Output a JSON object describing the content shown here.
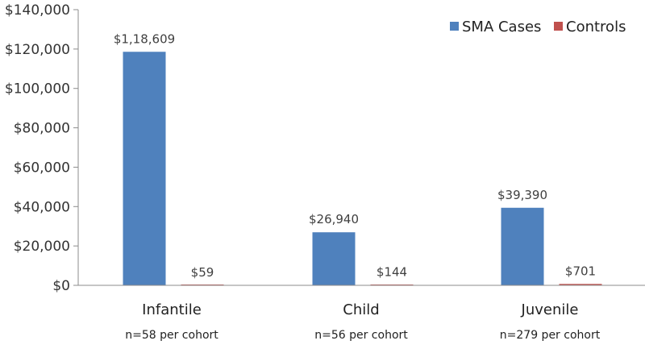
{
  "chart_data": {
    "type": "bar",
    "categories": [
      "Infantile",
      "Child",
      "Juvenile"
    ],
    "category_notes": [
      "n=58 per cohort",
      "n=56 per cohort",
      "n=279 per cohort"
    ],
    "series": [
      {
        "name": "SMA Cases",
        "color": "#4f81bd",
        "values": [
          118609,
          26940,
          39390
        ],
        "labels": [
          "$1,18,609",
          "$26,940",
          "$39,390"
        ]
      },
      {
        "name": "Controls",
        "color": "#c0504d",
        "values": [
          59,
          144,
          701
        ],
        "labels": [
          "$59",
          "$144",
          "$701"
        ]
      }
    ],
    "ylim": [
      0,
      140000
    ],
    "yticks": [
      0,
      20000,
      40000,
      60000,
      80000,
      100000,
      120000,
      140000
    ],
    "ytick_labels": [
      "$0",
      "$20,000",
      "$40,000",
      "$60,000",
      "$80,000",
      "$100,000",
      "$120,000",
      "$140,000"
    ],
    "grid": false,
    "legend_position": "top-right"
  }
}
